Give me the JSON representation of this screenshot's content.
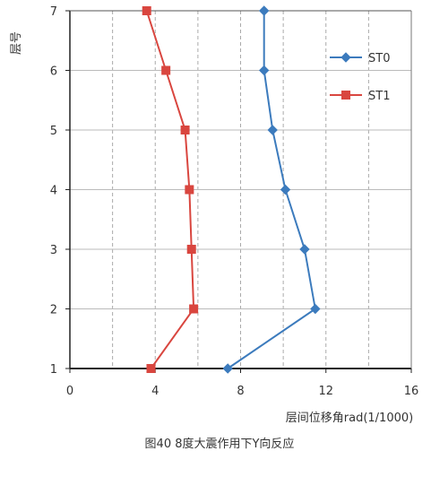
{
  "chart_data": {
    "type": "line",
    "xlabel": "层间位移角rad(1/1000)",
    "ylabel": "层号",
    "caption": "图40 8度大震作用下Y向反应",
    "xlim": [
      0,
      16
    ],
    "ylim": [
      1,
      7
    ],
    "xticks": [
      "0",
      "4",
      "8",
      "12",
      "16"
    ],
    "yticks": [
      "1",
      "2",
      "3",
      "4",
      "5",
      "6",
      "7"
    ],
    "grid": true,
    "legend_position": "top-right",
    "series": [
      {
        "name": "ST0",
        "color": "#3c7bbd",
        "marker": "diamond",
        "points": [
          {
            "x": 7.4,
            "y": 1
          },
          {
            "x": 11.5,
            "y": 2
          },
          {
            "x": 11.0,
            "y": 3
          },
          {
            "x": 10.1,
            "y": 4
          },
          {
            "x": 9.5,
            "y": 5
          },
          {
            "x": 9.1,
            "y": 6
          },
          {
            "x": 9.1,
            "y": 7
          }
        ]
      },
      {
        "name": "ST1",
        "color": "#d9463f",
        "marker": "square",
        "points": [
          {
            "x": 3.8,
            "y": 1
          },
          {
            "x": 5.8,
            "y": 2
          },
          {
            "x": 5.7,
            "y": 3
          },
          {
            "x": 5.6,
            "y": 4
          },
          {
            "x": 5.4,
            "y": 5
          },
          {
            "x": 4.5,
            "y": 6
          },
          {
            "x": 3.6,
            "y": 7
          }
        ]
      }
    ]
  }
}
